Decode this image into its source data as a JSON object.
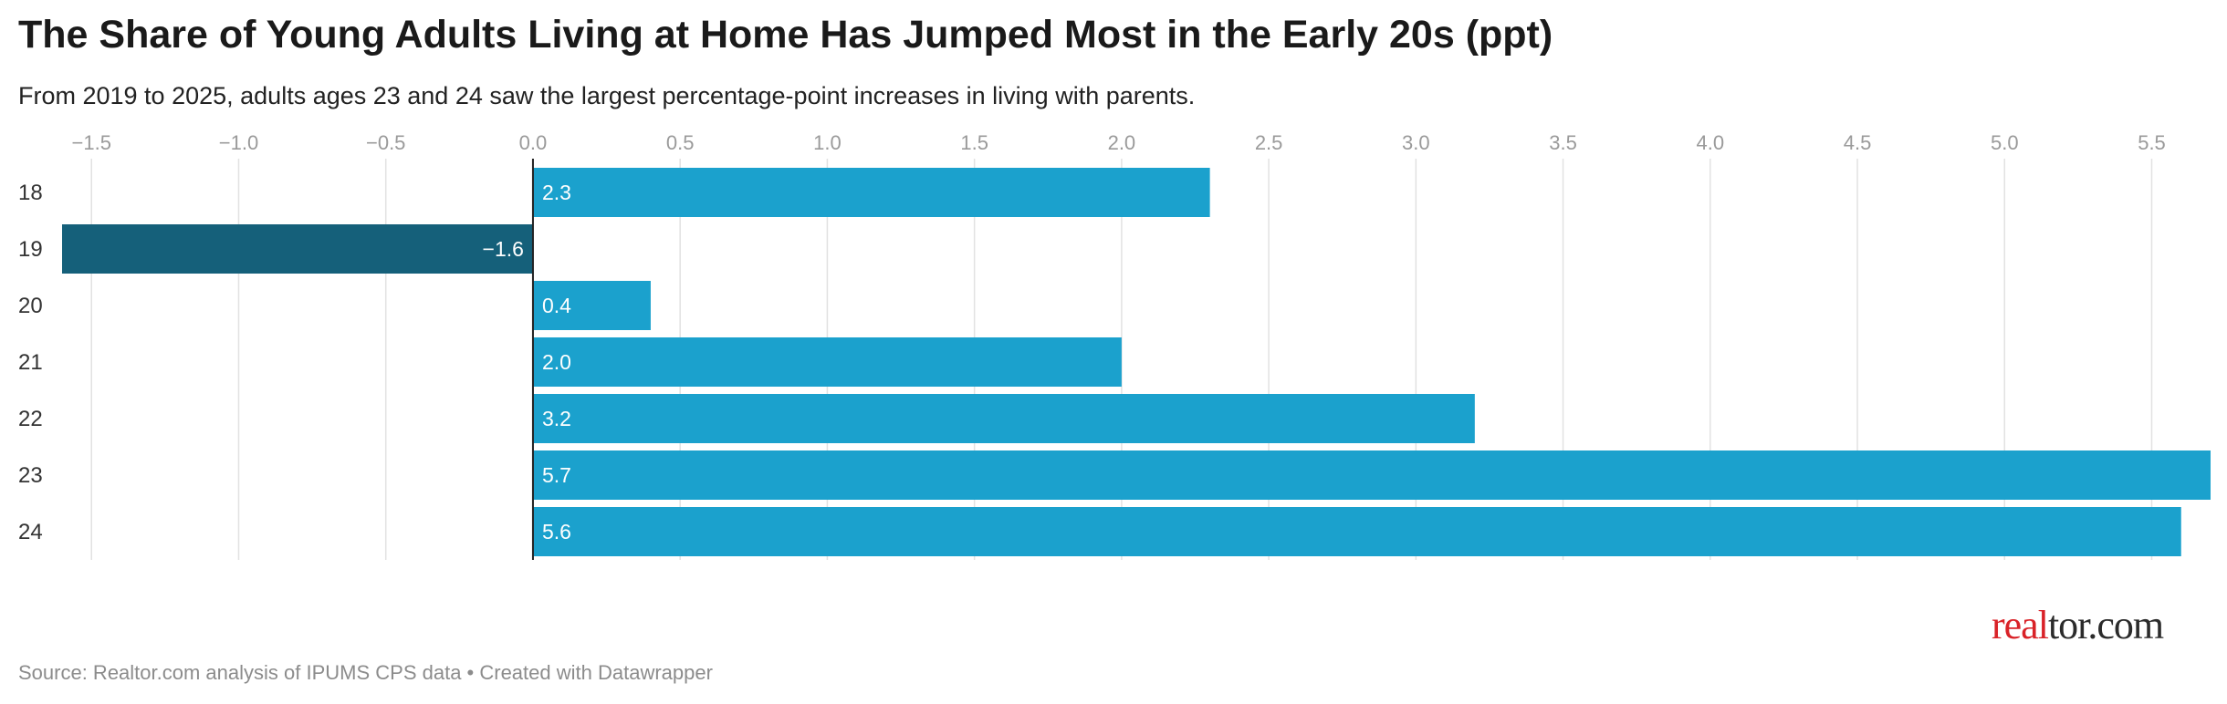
{
  "title": "The Share of Young Adults Living at Home Has Jumped Most in the Early 20s (ppt)",
  "subtitle": "From 2019 to 2025, adults ages 23 and 24 saw the largest percentage-point increases in living with parents.",
  "source": "Source: Realtor.com analysis of IPUMS CPS data • Created with Datawrapper",
  "logo": {
    "text": "realtor.com",
    "part_red": "real",
    "part_dark": "tor.com"
  },
  "colors": {
    "positive": "#1ba1cd",
    "negative": "#15607a",
    "grid": "#e2e2e2",
    "zero_line": "#222222"
  },
  "chart_data": {
    "type": "bar",
    "orientation": "horizontal",
    "categories": [
      "18",
      "19",
      "20",
      "21",
      "22",
      "23",
      "24"
    ],
    "values": [
      2.3,
      -1.6,
      0.4,
      2.0,
      3.2,
      5.7,
      5.6
    ],
    "value_labels": [
      "2.3",
      "−1.6",
      "0.4",
      "2.0",
      "3.2",
      "5.7",
      "5.6"
    ],
    "xlim": [
      -1.6,
      5.7
    ],
    "x_ticks": [
      -1.5,
      -1.0,
      -0.5,
      0.0,
      0.5,
      1.0,
      1.5,
      2.0,
      2.5,
      3.0,
      3.5,
      4.0,
      4.5,
      5.0,
      5.5
    ],
    "x_tick_labels": [
      "−1.5",
      "−1.0",
      "−0.5",
      "0.0",
      "0.5",
      "1.0",
      "1.5",
      "2.0",
      "2.5",
      "3.0",
      "3.5",
      "4.0",
      "4.5",
      "5.0",
      "5.5"
    ],
    "x_axis_position": "top",
    "grid": true,
    "legend": "none",
    "xlabel": "",
    "ylabel": ""
  }
}
